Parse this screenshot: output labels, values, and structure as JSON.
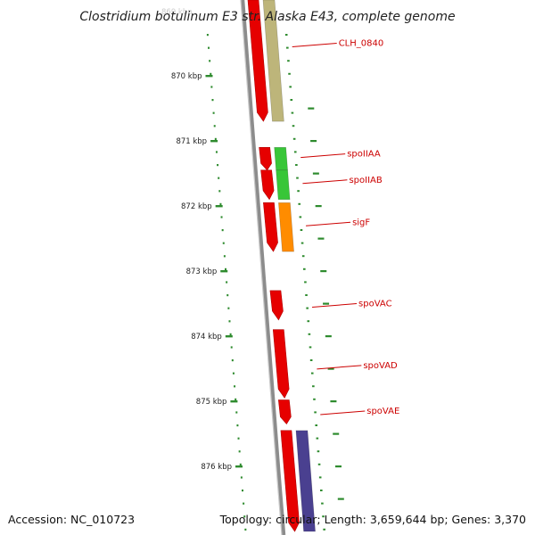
{
  "title": "Clostridium botulinum E3 str. Alaska E43, complete genome",
  "accession_text": "Accession: NC_010723",
  "topology_text": "Topology: circular; Length: 3,659,644 bp; Genes: 3,370",
  "scale": {
    "faded_top_label": "869 kbp",
    "ticks": [
      {
        "label": "870 kbp",
        "kbp": 870
      },
      {
        "label": "871 kbp",
        "kbp": 871
      },
      {
        "label": "872 kbp",
        "kbp": 872
      },
      {
        "label": "873 kbp",
        "kbp": 873
      },
      {
        "label": "874 kbp",
        "kbp": 874
      },
      {
        "label": "875 kbp",
        "kbp": 875
      },
      {
        "label": "876 kbp",
        "kbp": 876
      }
    ]
  },
  "colors": {
    "cds": "#e60000",
    "backbone": "#8c8c8c",
    "tick": "#2e8b2e",
    "label": "#cc0000",
    "olive": "#bdb57a",
    "green": "#38c638",
    "orange": "#ff8c00",
    "purple": "#4a4090"
  },
  "cds_features": [
    {
      "name": "cds-1",
      "start_kbp": 868.8,
      "end_kbp": 870.7,
      "strand": "+"
    },
    {
      "name": "cds-2",
      "start_kbp": 871.1,
      "end_kbp": 871.45,
      "strand": "+"
    },
    {
      "name": "cds-3",
      "start_kbp": 871.45,
      "end_kbp": 871.9,
      "strand": "+"
    },
    {
      "name": "cds-4",
      "start_kbp": 871.95,
      "end_kbp": 872.7,
      "strand": "+"
    },
    {
      "name": "cds-5",
      "start_kbp": 873.3,
      "end_kbp": 873.75,
      "strand": "+"
    },
    {
      "name": "cds-6",
      "start_kbp": 873.9,
      "end_kbp": 874.95,
      "strand": "+"
    },
    {
      "name": "cds-7",
      "start_kbp": 874.98,
      "end_kbp": 875.35,
      "strand": "+"
    },
    {
      "name": "cds-8",
      "start_kbp": 875.45,
      "end_kbp": 877.0,
      "strand": "+"
    }
  ],
  "gene_features": [
    {
      "name": "olive",
      "color": "#bdb57a",
      "start_kbp": 868.8,
      "end_kbp": 870.7
    },
    {
      "name": "green-1",
      "color": "#38c638",
      "start_kbp": 871.1,
      "end_kbp": 871.45
    },
    {
      "name": "green-2",
      "color": "#38c638",
      "start_kbp": 871.45,
      "end_kbp": 871.9
    },
    {
      "name": "orange",
      "color": "#ff8c00",
      "start_kbp": 871.95,
      "end_kbp": 872.7
    },
    {
      "name": "purple",
      "color": "#4a4090",
      "start_kbp": 875.45,
      "end_kbp": 877.0
    }
  ],
  "gene_labels": [
    {
      "text": "CLH_0840",
      "kbp": 869.5
    },
    {
      "text": "spoIIAA",
      "kbp": 871.2
    },
    {
      "text": "spoIIAB",
      "kbp": 871.6
    },
    {
      "text": "sigF",
      "kbp": 872.25
    },
    {
      "text": "spoVAC",
      "kbp": 873.5
    },
    {
      "text": "spoVAD",
      "kbp": 874.45
    },
    {
      "text": "spoVAE",
      "kbp": 875.15
    }
  ]
}
